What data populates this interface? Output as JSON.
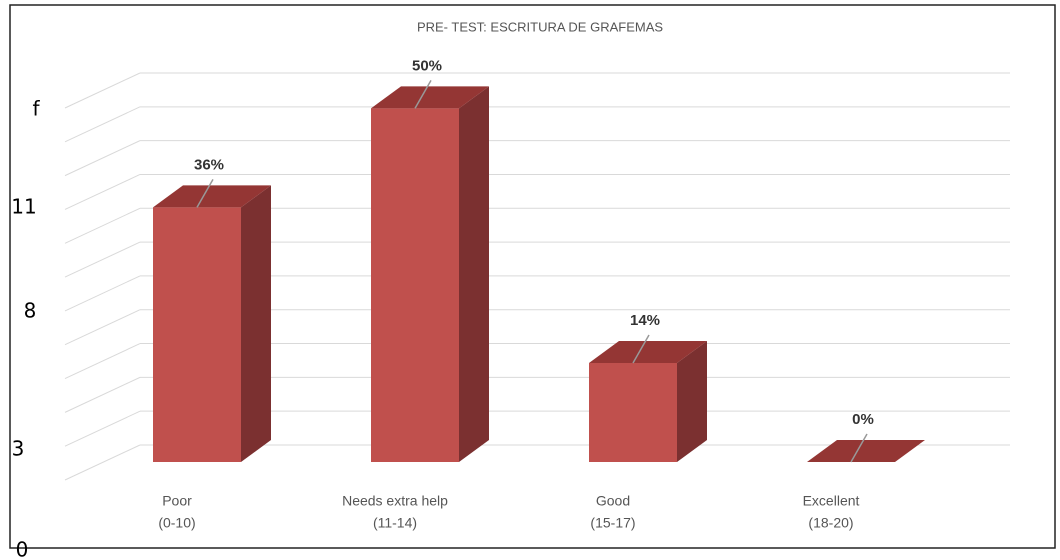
{
  "chart_data": {
    "type": "bar3d",
    "title": "PRE- TEST: ESCRITURA DE GRAFEMAS",
    "categories": [
      [
        "Poor",
        "(0-10)"
      ],
      [
        "Needs extra help",
        "(11-14)"
      ],
      [
        "Good",
        "(15-17)"
      ],
      [
        "Excellent",
        "(18-20)"
      ]
    ],
    "values": [
      36,
      50,
      14,
      0
    ],
    "value_labels": [
      "36%",
      "50%",
      "14%",
      "0%"
    ],
    "colors": {
      "front": "#c0504d",
      "side": "#7b3030",
      "top": "#943634"
    },
    "ylim": [
      0,
      55
    ],
    "grid": true,
    "side_labels": [
      "f",
      "11",
      "8",
      "3",
      "0"
    ]
  }
}
